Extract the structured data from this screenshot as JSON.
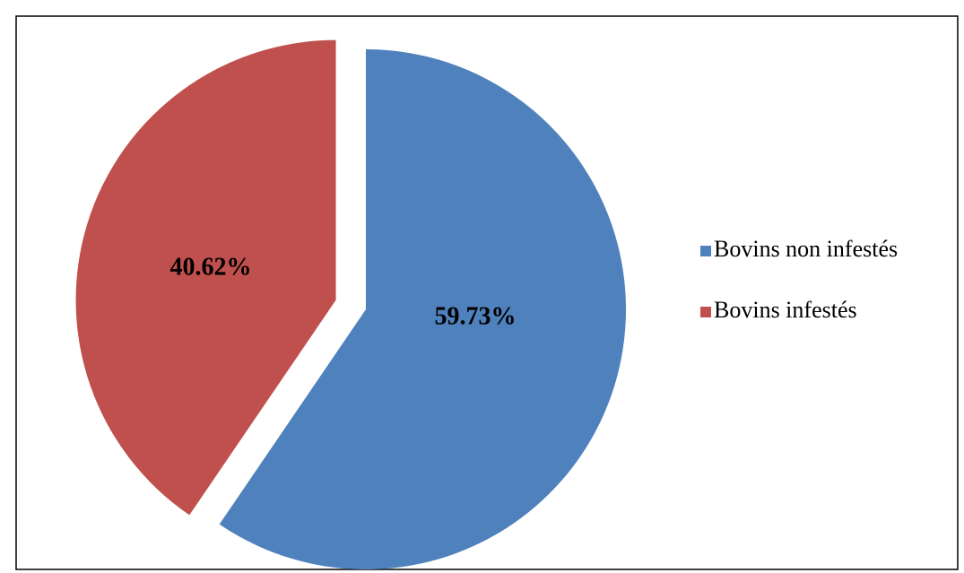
{
  "chart_data": {
    "type": "pie",
    "categories": [
      "Bovins non infestés",
      "Bovins infestés"
    ],
    "values": [
      59.73,
      40.62
    ],
    "value_labels": [
      "59.73%",
      "40.62%"
    ],
    "colors": [
      "#4f81bd",
      "#c0504d"
    ],
    "legend": "right"
  }
}
